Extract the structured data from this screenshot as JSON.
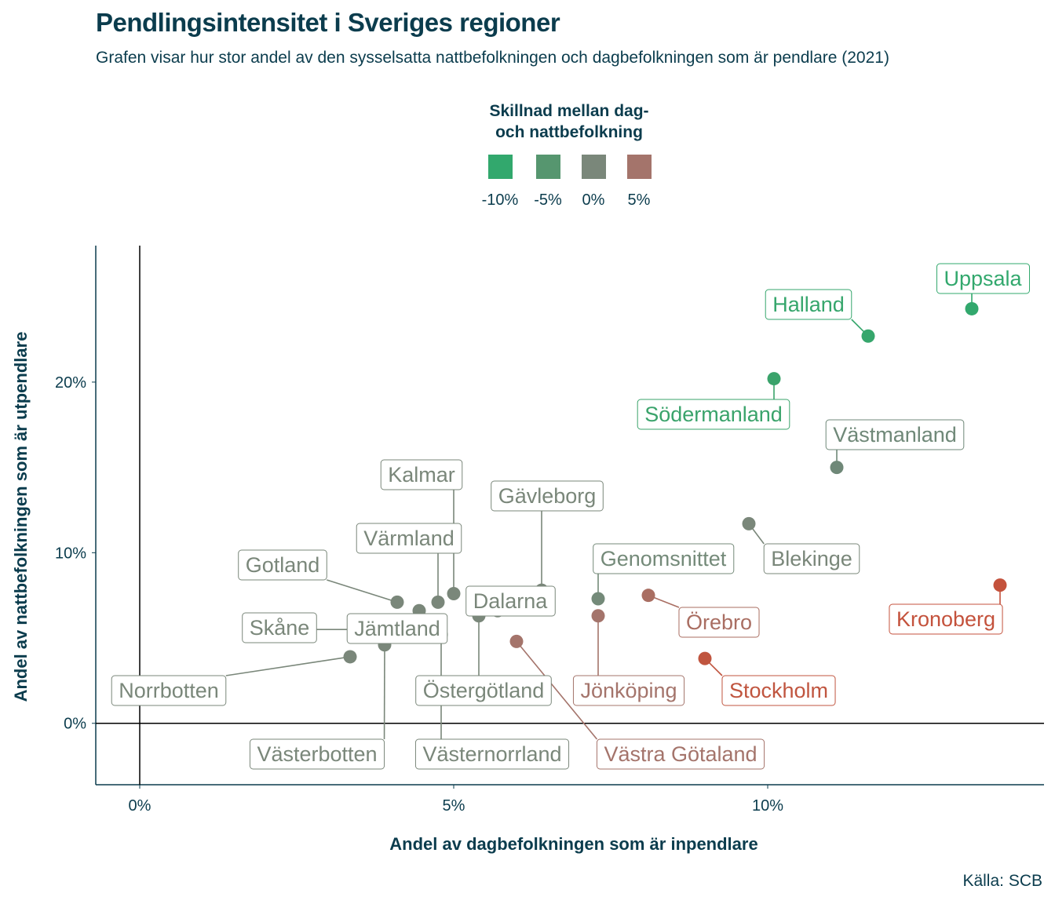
{
  "title": "Pendlingsintensitet i Sveriges regioner",
  "subtitle": "Grafen visar hur stor andel av den sysselsatta nattbefolkningen och dagbefolkningen som är pendlare (2021)",
  "source": "Källa: SCB",
  "legend": {
    "title_line1": "Skillnad mellan dag-",
    "title_line2": "och nattbefolkning",
    "items": [
      {
        "label": "-10%",
        "color": "#32a86d"
      },
      {
        "label": "-5%",
        "color": "#56966f"
      },
      {
        "label": "0%",
        "color": "#7a877a"
      },
      {
        "label": "5%",
        "color": "#a4746b"
      }
    ]
  },
  "chart_data": {
    "type": "scatter",
    "title": "Pendlingsintensitet i Sveriges regioner",
    "xlabel": "Andel av dagbefolkningen som är inpendlare",
    "ylabel": "Andel av nattbefolkningen som är utpendlare",
    "xlim": [
      -0.7,
      14.4
    ],
    "ylim": [
      -3.6,
      28
    ],
    "x_ticks": [
      {
        "value": 0,
        "label": "0%"
      },
      {
        "value": 5,
        "label": "5%"
      },
      {
        "value": 10,
        "label": "10%"
      }
    ],
    "y_ticks": [
      {
        "value": 0,
        "label": "0%"
      },
      {
        "value": 10,
        "label": "10%"
      },
      {
        "value": 20,
        "label": "20%"
      }
    ],
    "reference_lines": {
      "x": 0,
      "y": 0
    },
    "grid": false,
    "legend_position": "top",
    "color_scale": {
      "variable": "Skillnad mellan dag- och nattbefolkning",
      "low": "#32a86d",
      "mid": "#7a877a",
      "high": "#c4523c"
    },
    "points": [
      {
        "name": "Uppsala",
        "x": 13.25,
        "y": 24.3,
        "color": "#32a86d"
      },
      {
        "name": "Halland",
        "x": 11.6,
        "y": 22.7,
        "color": "#36a66c"
      },
      {
        "name": "Södermanland",
        "x": 10.1,
        "y": 20.2,
        "color": "#3aa36b"
      },
      {
        "name": "Västmanland",
        "x": 11.1,
        "y": 15.0,
        "color": "#6f8878"
      },
      {
        "name": "Blekinge",
        "x": 9.7,
        "y": 11.7,
        "color": "#7a877a"
      },
      {
        "name": "Kronoberg",
        "x": 13.7,
        "y": 8.1,
        "color": "#c4523c"
      },
      {
        "name": "Genomsnittet",
        "x": 7.3,
        "y": 7.3,
        "color": "#748a79"
      },
      {
        "name": "Örebro",
        "x": 8.1,
        "y": 7.5,
        "color": "#a96e62"
      },
      {
        "name": "Jönköping",
        "x": 7.3,
        "y": 6.3,
        "color": "#a4746b"
      },
      {
        "name": "Stockholm",
        "x": 9.0,
        "y": 3.8,
        "color": "#c0553f"
      },
      {
        "name": "Västra Götaland",
        "x": 6.0,
        "y": 4.8,
        "color": "#a4746b"
      },
      {
        "name": "Gävleborg",
        "x": 6.4,
        "y": 7.8,
        "color": "#7a877a"
      },
      {
        "name": "Dalarna",
        "x": 5.7,
        "y": 6.6,
        "color": "#7a877a"
      },
      {
        "name": "Kalmar",
        "x": 5.0,
        "y": 7.6,
        "color": "#7a877a"
      },
      {
        "name": "Värmland",
        "x": 4.75,
        "y": 7.1,
        "color": "#7a877a"
      },
      {
        "name": "Gotland",
        "x": 4.1,
        "y": 7.1,
        "color": "#7a877a"
      },
      {
        "name": "Östergötland",
        "x": 5.4,
        "y": 6.3,
        "color": "#7a877a"
      },
      {
        "name": "Västernorrland",
        "x": 4.8,
        "y": 5.2,
        "color": "#7a877a"
      },
      {
        "name": "Jämtland",
        "x": 4.45,
        "y": 6.6,
        "color": "#7a877a"
      },
      {
        "name": "Skåne",
        "x": 3.6,
        "y": 5.5,
        "color": "#7a877a"
      },
      {
        "name": "Västerbotten",
        "x": 3.9,
        "y": 4.6,
        "color": "#7a877a"
      },
      {
        "name": "Norrbotten",
        "x": 3.35,
        "y": 3.9,
        "color": "#7a877a"
      }
    ]
  }
}
